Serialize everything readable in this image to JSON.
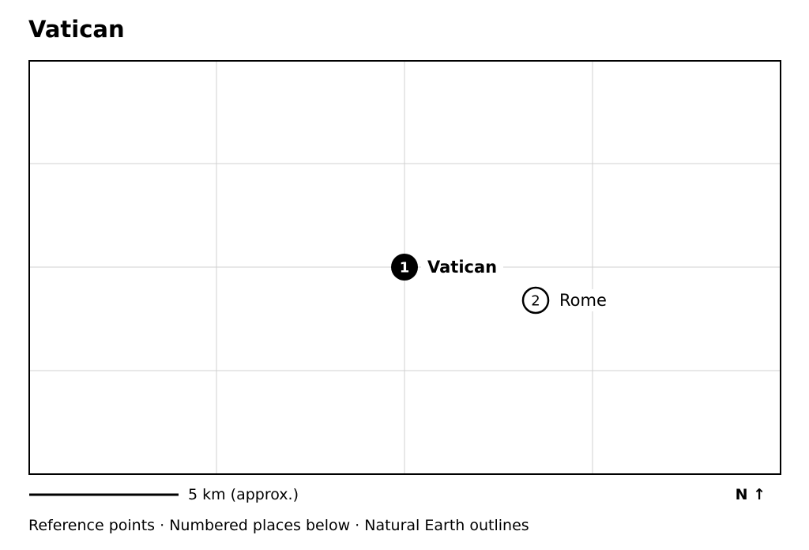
{
  "header": {
    "title": "Vatican"
  },
  "map": {
    "markers": [
      {
        "number": 1,
        "label": "Vatican"
      },
      {
        "number": 2,
        "label": "Rome"
      }
    ]
  },
  "scale": {
    "label": "5 km (approx.)"
  },
  "north": {
    "label": "N ↑"
  },
  "footer": {
    "text": "Reference points · Numbered places below · Natural Earth outlines"
  }
}
